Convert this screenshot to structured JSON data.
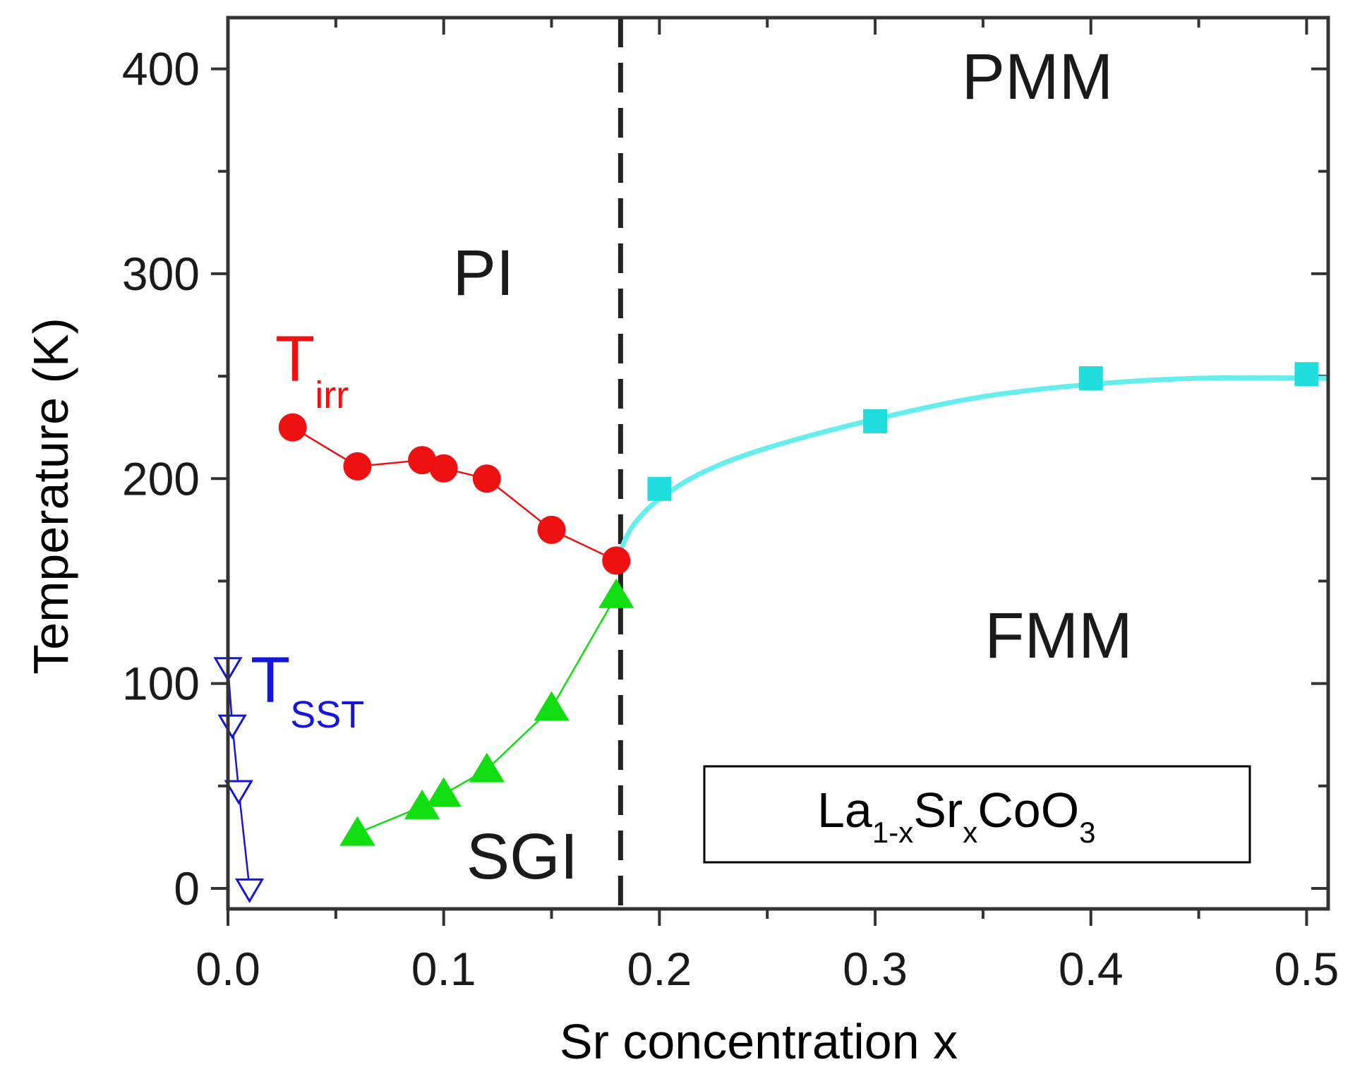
{
  "chart_data": {
    "type": "scatter",
    "xlabel": "Sr concentration x",
    "ylabel": "Temperature (K)",
    "xlim": [
      0.0,
      0.51
    ],
    "ylim": [
      -10,
      425
    ],
    "x_ticks": [
      "0.0",
      "0.1",
      "0.2",
      "0.3",
      "0.4",
      "0.5"
    ],
    "x_tick_values": [
      0.0,
      0.1,
      0.2,
      0.3,
      0.4,
      0.5
    ],
    "y_ticks": [
      "0",
      "100",
      "200",
      "300",
      "400"
    ],
    "y_tick_values": [
      0,
      100,
      200,
      300,
      400
    ],
    "grid": false,
    "colors": {
      "t_irr": "#ee1111",
      "green": "#11dd11",
      "t_sst": "#1515dd",
      "cyan": "#22dddd",
      "cyan_line": "#66eeee"
    },
    "series": [
      {
        "name": "T_irr",
        "marker": "circle",
        "x": [
          0.03,
          0.06,
          0.09,
          0.1,
          0.12,
          0.15,
          0.18
        ],
        "y": [
          225,
          206,
          209,
          205,
          200,
          175,
          160
        ]
      },
      {
        "name": "",
        "marker": "triangle-up",
        "x": [
          0.06,
          0.09,
          0.1,
          0.12,
          0.15,
          0.18
        ],
        "y": [
          27,
          40,
          46,
          58,
          88,
          143
        ]
      },
      {
        "name": "T_SST",
        "marker": "triangle-down-open",
        "x": [
          0.0,
          0.002,
          0.005,
          0.01
        ],
        "y": [
          108,
          80,
          48,
          0
        ]
      },
      {
        "name": "",
        "marker": "square",
        "x": [
          0.2,
          0.3,
          0.4,
          0.5
        ],
        "y": [
          195,
          228,
          249,
          251
        ]
      }
    ],
    "fit_curve": {
      "x": [
        0.18,
        0.185,
        0.19,
        0.2,
        0.22,
        0.25,
        0.3,
        0.35,
        0.4,
        0.45,
        0.51
      ],
      "y": [
        160,
        172,
        180,
        190,
        203,
        215,
        229,
        240,
        246,
        249,
        249
      ]
    },
    "boundary_x": 0.182,
    "annotations": {
      "t_irr": {
        "main": "T",
        "sub": "irr"
      },
      "t_sst": {
        "main": "T",
        "sub": "SST"
      },
      "regions": {
        "pi": "PI",
        "pmm": "PMM",
        "fmm": "FMM",
        "sgi": "SGI"
      },
      "compound": {
        "a": "La",
        "a_sub": "1-x",
        "b": "Sr",
        "b_sub": "x",
        "c": "CoO",
        "c_sub": "3"
      }
    }
  }
}
